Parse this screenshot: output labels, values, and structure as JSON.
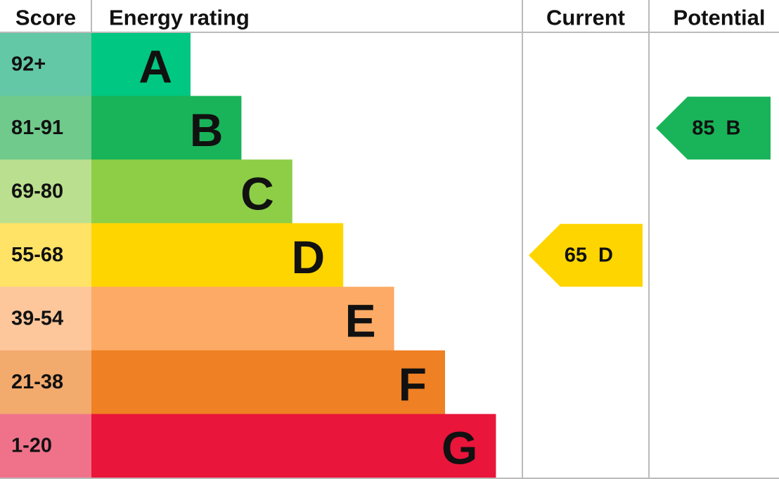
{
  "header": {
    "score": "Score",
    "rating": "Energy rating",
    "current": "Current",
    "potential": "Potential"
  },
  "bands": [
    {
      "score": "92+",
      "letter": "A",
      "color": "#00c781",
      "score_color": "#63c8a6"
    },
    {
      "score": "81-91",
      "letter": "B",
      "color": "#19b459",
      "score_color": "#6fca8b"
    },
    {
      "score": "69-80",
      "letter": "C",
      "color": "#8dce46",
      "score_color": "#badf8e"
    },
    {
      "score": "55-68",
      "letter": "D",
      "color": "#ffd500",
      "score_color": "#ffe366"
    },
    {
      "score": "39-54",
      "letter": "E",
      "color": "#fcaa65",
      "score_color": "#fdc79b"
    },
    {
      "score": "21-38",
      "letter": "F",
      "color": "#ef8023",
      "score_color": "#f3aa6d"
    },
    {
      "score": "1-20",
      "letter": "G",
      "color": "#e9153b",
      "score_color": "#f0728a"
    }
  ],
  "current": {
    "value": 65,
    "letter": "D"
  },
  "potential": {
    "value": 85,
    "letter": "B"
  }
}
